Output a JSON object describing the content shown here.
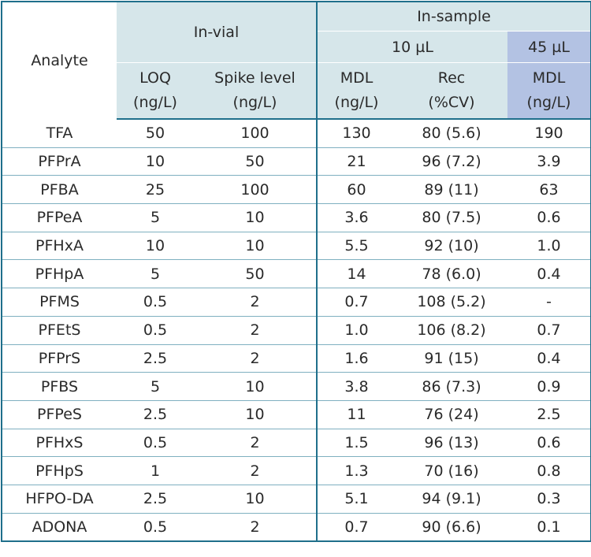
{
  "header": {
    "analyte": "Analyte",
    "in_vial": "In-vial",
    "in_sample": "In-sample",
    "vol_10": "10 µL",
    "vol_45": "45 µL",
    "loq": [
      "LOQ",
      "(ng/L)"
    ],
    "spike": [
      "Spike level",
      "(ng/L)"
    ],
    "mdl10": [
      "MDL",
      "(ng/L)"
    ],
    "rec": [
      "Rec",
      "(%CV)"
    ],
    "mdl45": [
      "MDL",
      "(ng/L)"
    ]
  },
  "colors": {
    "header_bg": "#d6e6ea",
    "highlight_bg": "#b3c2e3",
    "rule": "#1f6f8b"
  },
  "rows": [
    [
      "TFA",
      "50",
      "100",
      "130",
      "80 (5.6)",
      "190"
    ],
    [
      "PFPrA",
      "10",
      "50",
      "21",
      "96 (7.2)",
      "3.9"
    ],
    [
      "PFBA",
      "25",
      "100",
      "60",
      "89 (11)",
      "63"
    ],
    [
      "PFPeA",
      "5",
      "10",
      "3.6",
      "80 (7.5)",
      "0.6"
    ],
    [
      "PFHxA",
      "10",
      "10",
      "5.5",
      "92 (10)",
      "1.0"
    ],
    [
      "PFHpA",
      "5",
      "50",
      "14",
      "78 (6.0)",
      "0.4"
    ],
    [
      "PFMS",
      "0.5",
      "2",
      "0.7",
      "108 (5.2)",
      "-"
    ],
    [
      "PFEtS",
      "0.5",
      "2",
      "1.0",
      "106 (8.2)",
      "0.7"
    ],
    [
      "PFPrS",
      "2.5",
      "2",
      "1.6",
      "91 (15)",
      "0.4"
    ],
    [
      "PFBS",
      "5",
      "10",
      "3.8",
      "86 (7.3)",
      "0.9"
    ],
    [
      "PFPeS",
      "2.5",
      "10",
      "11",
      "76 (24)",
      "2.5"
    ],
    [
      "PFHxS",
      "0.5",
      "2",
      "1.5",
      "96 (13)",
      "0.6"
    ],
    [
      "PFHpS",
      "1",
      "2",
      "1.3",
      "70 (16)",
      "0.8"
    ],
    [
      "HFPO-DA",
      "2.5",
      "10",
      "5.1",
      "94 (9.1)",
      "0.3"
    ],
    [
      "ADONA",
      "0.5",
      "2",
      "0.7",
      "90 (6.6)",
      "0.1"
    ]
  ]
}
